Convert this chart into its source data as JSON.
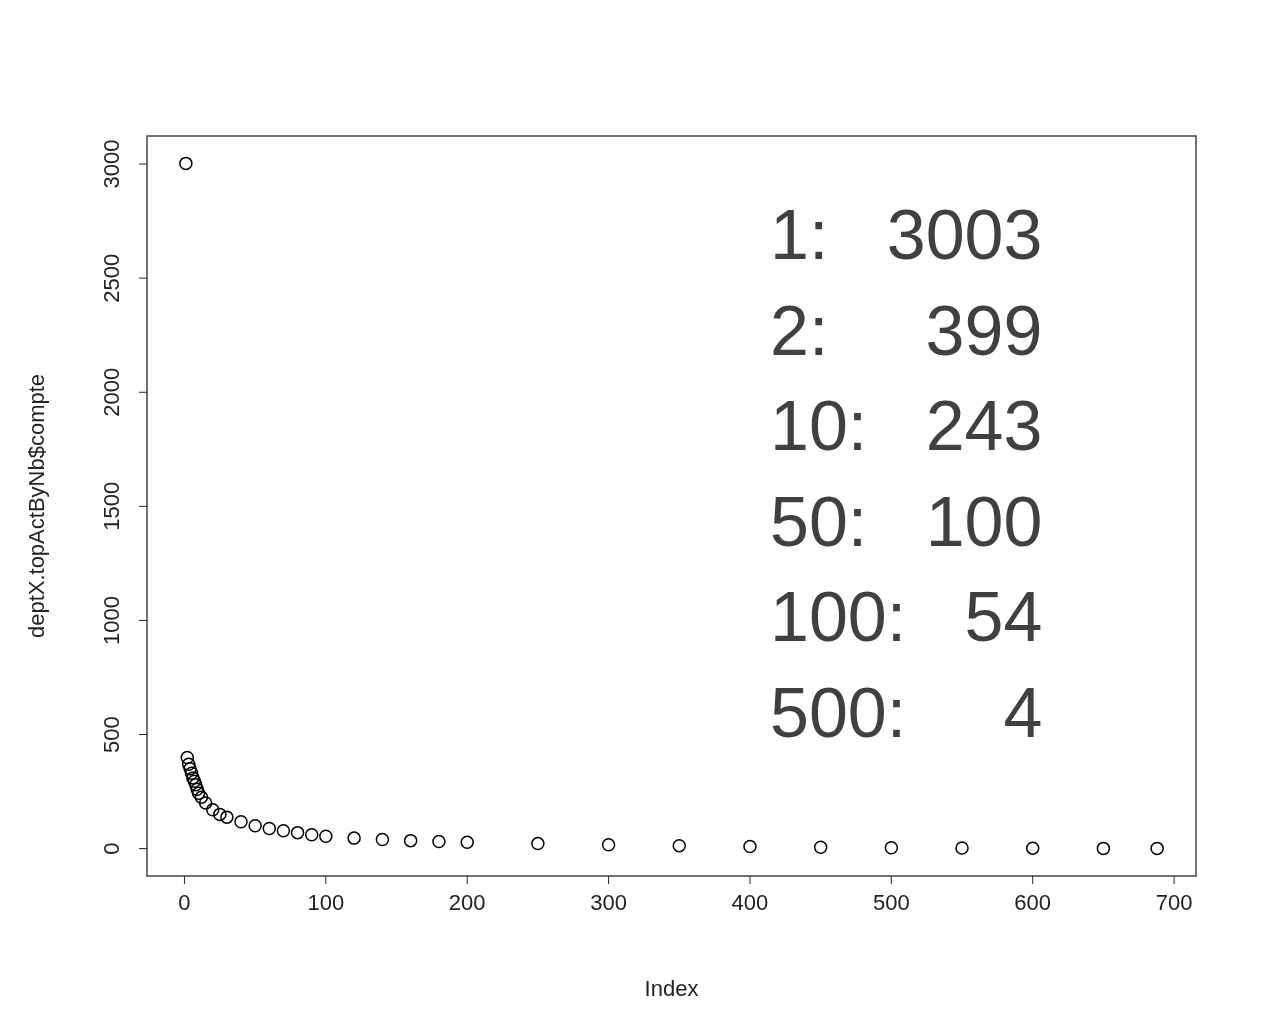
{
  "chart_data": {
    "type": "scatter",
    "xlabel": "Index",
    "ylabel": "deptX.topActByNb$compte",
    "x": [
      1,
      2,
      3,
      4,
      5,
      6,
      7,
      8,
      9,
      10,
      12,
      15,
      20,
      25,
      30,
      40,
      50,
      60,
      70,
      80,
      90,
      100,
      120,
      140,
      160,
      180,
      200,
      250,
      300,
      350,
      400,
      450,
      500,
      550,
      600,
      650,
      688
    ],
    "values": [
      3003,
      399,
      370,
      350,
      330,
      310,
      295,
      280,
      260,
      243,
      225,
      200,
      170,
      150,
      138,
      118,
      100,
      88,
      78,
      70,
      61,
      54,
      46,
      40,
      35,
      31,
      28,
      22,
      17,
      13,
      9,
      6,
      4,
      3,
      2,
      1,
      1
    ],
    "color": "#000000",
    "marker": "circle",
    "xlim": [
      -26.5,
      715.5
    ],
    "xticks": [
      0,
      100,
      200,
      300,
      400,
      500,
      600,
      700
    ],
    "ylim": [
      -120,
      3123
    ],
    "yticks": [
      0,
      500,
      1000,
      1500,
      2000,
      2500,
      3000
    ],
    "annotations": [
      "1:   3003",
      "2:     399",
      "10:   243",
      "50:   100",
      "100:   54",
      "500:     4"
    ]
  }
}
